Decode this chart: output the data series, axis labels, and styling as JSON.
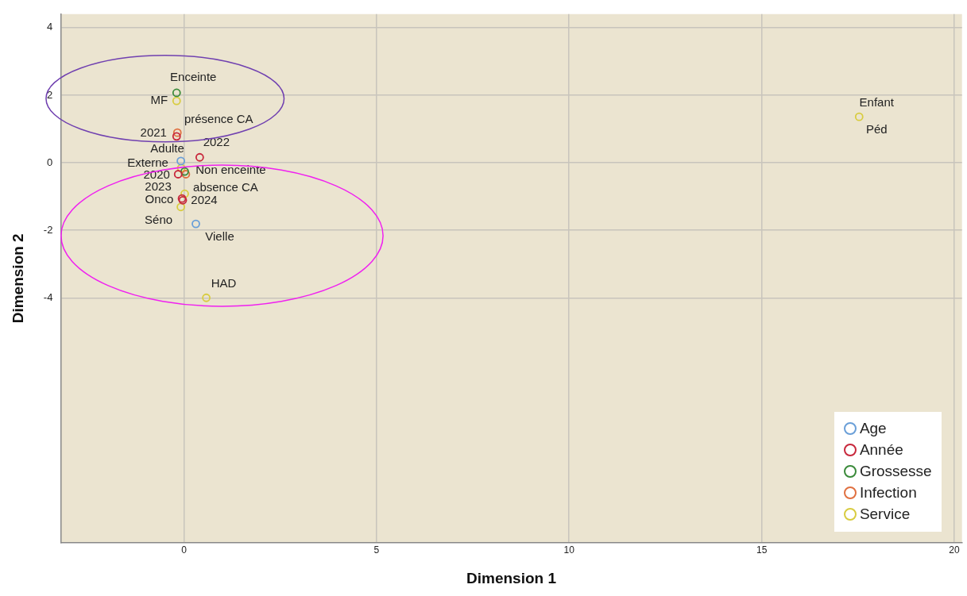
{
  "chart_data": {
    "type": "scatter",
    "xlabel": "Dimension 1",
    "ylabel": "Dimension 2",
    "xlim": [
      -3.2,
      20.2
    ],
    "ylim": [
      -11.25,
      4.4
    ],
    "xticks": [
      0,
      5,
      10,
      15,
      20
    ],
    "yticks": [
      -4,
      -2,
      0,
      2,
      4
    ],
    "grid": true,
    "legend": "bottom right",
    "marker": "circle",
    "series": [
      {
        "name": "Age",
        "color": "#6a9fd8",
        "x": [
          -0.08,
          0.31
        ],
        "values": [
          0.05,
          -1.81
        ]
      },
      {
        "name": "Année",
        "color": "#c8283c",
        "x": [
          -0.15,
          -0.19,
          0.41,
          -0.05,
          -0.03
        ],
        "values": [
          -0.34,
          0.78,
          0.16,
          -1.06,
          -1.11
        ]
      },
      {
        "name": "Grossesse",
        "color": "#3a8a3a",
        "x": [
          -0.19,
          0.02
        ],
        "values": [
          2.07,
          -0.26
        ]
      },
      {
        "name": "Infection",
        "color": "#e07040",
        "x": [
          -0.17,
          0.05
        ],
        "values": [
          0.89,
          -0.34
        ]
      },
      {
        "name": "Service",
        "color": "#d8cc40",
        "x": [
          -0.19,
          -0.07,
          0.02,
          -0.08,
          0.58,
          17.53
        ],
        "values": [
          1.83,
          -0.16,
          -0.92,
          -1.31,
          -4.0,
          1.36
        ]
      }
    ],
    "annotations": [
      {
        "text": "Adulte",
        "x": -0.08,
        "y": 0.05
      },
      {
        "text": "Vielle",
        "x": 0.31,
        "y": -1.81
      },
      {
        "text": "Enfant",
        "x": 17.53,
        "y": 1.36
      },
      {
        "text": "2020",
        "x": -0.15,
        "y": -0.34
      },
      {
        "text": "2021",
        "x": -0.19,
        "y": 0.78
      },
      {
        "text": "2022",
        "x": 0.41,
        "y": 0.16
      },
      {
        "text": "2023",
        "x": -0.05,
        "y": -1.06
      },
      {
        "text": "2024",
        "x": -0.03,
        "y": -1.11
      },
      {
        "text": "Enceinte",
        "x": -0.19,
        "y": 2.07
      },
      {
        "text": "Non enceinte",
        "x": 0.02,
        "y": -0.26
      },
      {
        "text": "présence CA",
        "x": -0.17,
        "y": 0.89
      },
      {
        "text": "absence CA",
        "x": 0.05,
        "y": -0.34
      },
      {
        "text": "MF",
        "x": -0.19,
        "y": 1.83
      },
      {
        "text": "Externe",
        "x": -0.07,
        "y": -0.16
      },
      {
        "text": "Onco",
        "x": 0.02,
        "y": -0.92
      },
      {
        "text": "Séno",
        "x": -0.08,
        "y": -1.31
      },
      {
        "text": "HAD",
        "x": 0.58,
        "y": -4.0
      },
      {
        "text": "Péd",
        "x": 17.53,
        "y": 1.36
      }
    ]
  }
}
